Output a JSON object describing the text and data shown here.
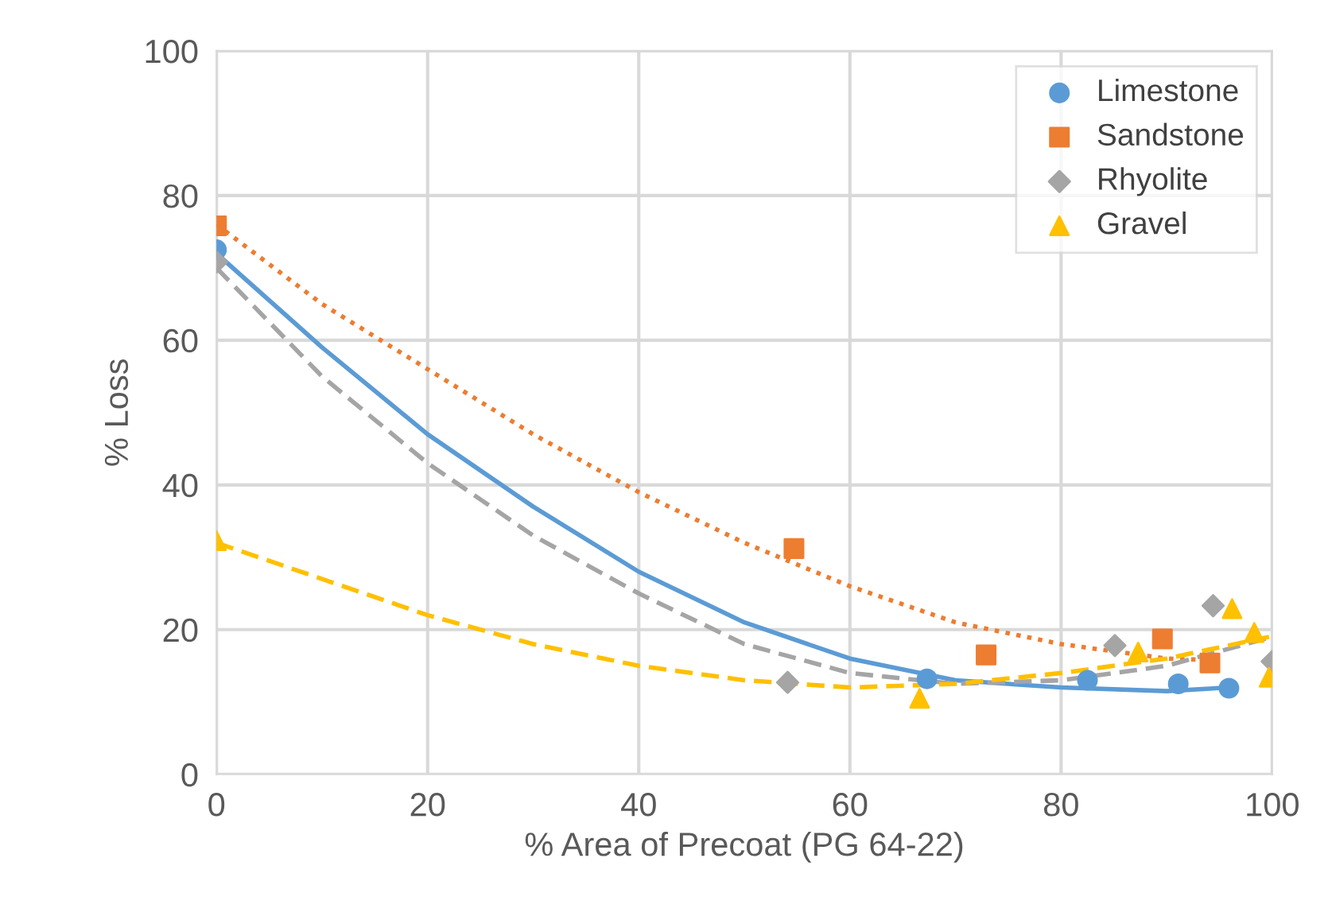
{
  "chart_data": {
    "type": "scatter",
    "xlabel": "% Area of Precoat (PG 64-22)",
    "ylabel": "% Loss",
    "xlim": [
      0,
      100
    ],
    "ylim": [
      0,
      100
    ],
    "xticks": [
      0,
      20,
      40,
      60,
      80,
      100
    ],
    "yticks": [
      0,
      20,
      40,
      60,
      80,
      100
    ],
    "grid": true,
    "legend": "top right",
    "series": [
      {
        "name": "Limestone",
        "marker": "circle",
        "color": "#5b9bd5",
        "x": [
          0,
          67.3,
          82.5,
          91.1,
          95.9
        ],
        "values": [
          72.5,
          13.2,
          13,
          12.5,
          11.9
        ]
      },
      {
        "name": "Sandstone",
        "marker": "square",
        "color": "#ed7d31",
        "x": [
          0,
          54.7,
          72.9,
          89.6,
          94.1
        ],
        "values": [
          75.8,
          31.2,
          16.5,
          18.7,
          15.4
        ]
      },
      {
        "name": "Rhyolite",
        "marker": "diamond",
        "color": "#a5a5a5",
        "x": [
          0,
          54.1,
          85.1,
          94.4,
          100
        ],
        "values": [
          70.8,
          12.7,
          17.8,
          23.3,
          15.6
        ]
      },
      {
        "name": "Gravel",
        "marker": "triangle",
        "color": "#ffc000",
        "x": [
          0,
          66.6,
          87.3,
          96.2,
          98.3,
          99.7
        ],
        "values": [
          32.3,
          10.5,
          16.9,
          22.9,
          19.6,
          13.4
        ]
      },
      {
        "type": "line",
        "line_style": "solid",
        "color": "#5b9bd5",
        "x": [
          0,
          10,
          20,
          30,
          40,
          50,
          60,
          70,
          80,
          90,
          95.9
        ],
        "values": [
          72,
          59,
          47,
          37,
          28,
          21,
          16,
          13,
          12,
          11.5,
          12
        ]
      },
      {
        "type": "line",
        "line_style": "dotted",
        "color": "#ed7d31",
        "x": [
          0,
          10,
          20,
          30,
          40,
          50,
          60,
          70,
          80,
          90,
          94.1
        ],
        "values": [
          76,
          65,
          56,
          47,
          39,
          32,
          26,
          21,
          18,
          16,
          15.8
        ]
      },
      {
        "type": "line",
        "line_style": "dashed",
        "color": "#a5a5a5",
        "x": [
          0,
          10,
          20,
          30,
          40,
          50,
          60,
          70,
          80,
          90,
          100
        ],
        "values": [
          70,
          55,
          43,
          33,
          25,
          18,
          14,
          12.5,
          13,
          15,
          19
        ]
      },
      {
        "type": "line",
        "line_style": "dashed",
        "color": "#ffc000",
        "x": [
          0,
          10,
          20,
          30,
          40,
          50,
          60,
          70,
          80,
          90,
          99.7
        ],
        "values": [
          32,
          27,
          22,
          18,
          15,
          13,
          12,
          12.5,
          14,
          16,
          19
        ]
      }
    ]
  }
}
